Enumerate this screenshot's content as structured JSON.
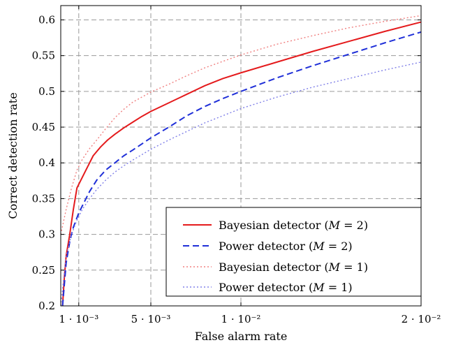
{
  "chart_data": {
    "type": "line",
    "xlabel": "False alarm rate",
    "ylabel": "Correct detection rate",
    "xlim": [
      0.0,
      0.02
    ],
    "ylim": [
      0.2,
      0.62
    ],
    "grid": true,
    "legend_position": "bottom-right",
    "x_ticks": [
      {
        "value": 0.001,
        "label": "1 · 10⁻³"
      },
      {
        "value": 0.005,
        "label": "5 · 10⁻³"
      },
      {
        "value": 0.01,
        "label": "1 · 10⁻²"
      },
      {
        "value": 0.02,
        "label": "2 · 10⁻²"
      }
    ],
    "y_ticks": [
      {
        "value": 0.2,
        "label": "0.2"
      },
      {
        "value": 0.25,
        "label": "0.25"
      },
      {
        "value": 0.3,
        "label": "0.3"
      },
      {
        "value": 0.35,
        "label": "0.35"
      },
      {
        "value": 0.4,
        "label": "0.4"
      },
      {
        "value": 0.45,
        "label": "0.45"
      },
      {
        "value": 0.5,
        "label": "0.5"
      },
      {
        "value": 0.55,
        "label": "0.55"
      },
      {
        "value": 0.6,
        "label": "0.6"
      }
    ],
    "series": [
      {
        "name": "Bayesian detector (M = 2)",
        "legend_prefix": "Bayesian detector (",
        "legend_math": "M",
        "legend_suffix": " = 2)",
        "color": "#e41a1c",
        "style": "solid",
        "x": [
          0.0001,
          0.0002,
          0.0003,
          0.0005,
          0.0007,
          0.0009,
          0.0011,
          0.0014,
          0.0018,
          0.0022,
          0.0026,
          0.003,
          0.0035,
          0.004,
          0.0045,
          0.005,
          0.006,
          0.007,
          0.008,
          0.009,
          0.01,
          0.012,
          0.014,
          0.016,
          0.018,
          0.02
        ],
        "values": [
          0.2,
          0.24,
          0.27,
          0.3,
          0.335,
          0.365,
          0.375,
          0.39,
          0.41,
          0.422,
          0.432,
          0.44,
          0.449,
          0.457,
          0.465,
          0.472,
          0.484,
          0.496,
          0.508,
          0.518,
          0.526,
          0.541,
          0.556,
          0.57,
          0.584,
          0.597
        ]
      },
      {
        "name": "Power detector (M = 2)",
        "legend_prefix": "Power detector (",
        "legend_math": "M",
        "legend_suffix": " = 2)",
        "color": "#1f2fd8",
        "style": "dashed",
        "x": [
          0.0001,
          0.0003,
          0.0005,
          0.0007,
          0.001,
          0.0013,
          0.0016,
          0.002,
          0.0025,
          0.003,
          0.0035,
          0.004,
          0.005,
          0.006,
          0.007,
          0.008,
          0.009,
          0.01,
          0.012,
          0.014,
          0.016,
          0.018,
          0.02
        ],
        "values": [
          0.2,
          0.26,
          0.29,
          0.31,
          0.33,
          0.345,
          0.36,
          0.376,
          0.39,
          0.4,
          0.41,
          0.418,
          0.435,
          0.45,
          0.466,
          0.479,
          0.49,
          0.5,
          0.519,
          0.536,
          0.552,
          0.568,
          0.583
        ]
      },
      {
        "name": "Bayesian detector (M = 1)",
        "legend_prefix": "Bayesian detector (",
        "legend_math": "M",
        "legend_suffix": " = 1)",
        "color": "#f08080",
        "style": "dotted",
        "x": [
          0.0,
          0.0003,
          0.0006,
          0.0009,
          0.0012,
          0.0016,
          0.002,
          0.0025,
          0.003,
          0.0035,
          0.004,
          0.005,
          0.006,
          0.007,
          0.008,
          0.009,
          0.01,
          0.012,
          0.014,
          0.016,
          0.018,
          0.02
        ],
        "values": [
          0.3,
          0.335,
          0.365,
          0.39,
          0.405,
          0.42,
          0.432,
          0.448,
          0.463,
          0.475,
          0.485,
          0.499,
          0.51,
          0.522,
          0.533,
          0.542,
          0.551,
          0.566,
          0.578,
          0.589,
          0.598,
          0.606
        ]
      },
      {
        "name": "Power detector (M = 1)",
        "legend_prefix": "Power detector (",
        "legend_math": "M",
        "legend_suffix": " = 1)",
        "color": "#8080e8",
        "style": "dotted",
        "x": [
          0.0,
          0.0003,
          0.0006,
          0.0009,
          0.0012,
          0.0016,
          0.002,
          0.0025,
          0.003,
          0.0035,
          0.004,
          0.005,
          0.006,
          0.007,
          0.008,
          0.009,
          0.01,
          0.012,
          0.014,
          0.016,
          0.018,
          0.02
        ],
        "values": [
          0.2,
          0.27,
          0.3,
          0.32,
          0.335,
          0.35,
          0.363,
          0.376,
          0.387,
          0.396,
          0.404,
          0.419,
          0.432,
          0.444,
          0.456,
          0.466,
          0.476,
          0.492,
          0.506,
          0.518,
          0.53,
          0.541
        ]
      }
    ]
  }
}
